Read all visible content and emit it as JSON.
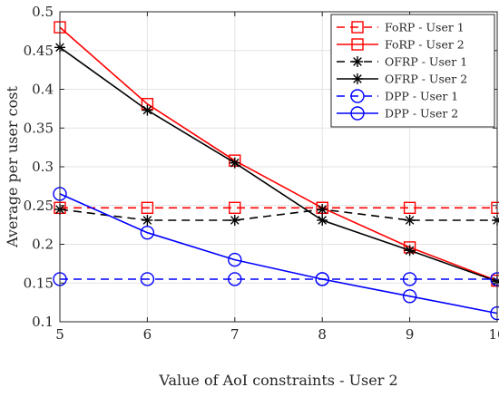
{
  "chart_data": {
    "type": "line",
    "title": "",
    "xlabel": "Value of AoI constraints - User 2",
    "ylabel": "Average per user cost",
    "xlim": [
      5,
      10
    ],
    "ylim": [
      0.1,
      0.5
    ],
    "x": [
      5,
      6,
      7,
      8,
      9,
      10
    ],
    "xticks": [
      "5",
      "6",
      "7",
      "8",
      "9",
      "10"
    ],
    "yticks": [
      "0.1",
      "0.15",
      "0.2",
      "0.25",
      "0.3",
      "0.35",
      "0.4",
      "0.45",
      "0.5"
    ],
    "grid": true,
    "legend_position": "top-right",
    "series": [
      {
        "name": "FoRP - User 1",
        "color": "#ff0000",
        "marker": "square",
        "dash": true,
        "values": [
          0.247,
          0.247,
          0.247,
          0.247,
          0.247,
          0.247
        ]
      },
      {
        "name": "FoRP - User 2",
        "color": "#ff0000",
        "marker": "square",
        "dash": false,
        "values": [
          0.48,
          0.381,
          0.308,
          0.247,
          0.196,
          0.153
        ]
      },
      {
        "name": "OFRP - User 1",
        "color": "#000000",
        "marker": "asterisk",
        "dash": true,
        "values": [
          0.245,
          0.231,
          0.231,
          0.245,
          0.231,
          0.231
        ]
      },
      {
        "name": "OFRP - User 2",
        "color": "#000000",
        "marker": "asterisk",
        "dash": false,
        "values": [
          0.454,
          0.373,
          0.305,
          0.231,
          0.192,
          0.152
        ]
      },
      {
        "name": "DPP - User 1",
        "color": "#0000ff",
        "marker": "circle",
        "dash": true,
        "values": [
          0.155,
          0.155,
          0.155,
          0.155,
          0.155,
          0.155
        ]
      },
      {
        "name": "DPP - User 2",
        "color": "#0000ff",
        "marker": "circle",
        "dash": false,
        "values": [
          0.265,
          0.215,
          0.18,
          0.155,
          0.133,
          0.111
        ]
      }
    ]
  }
}
